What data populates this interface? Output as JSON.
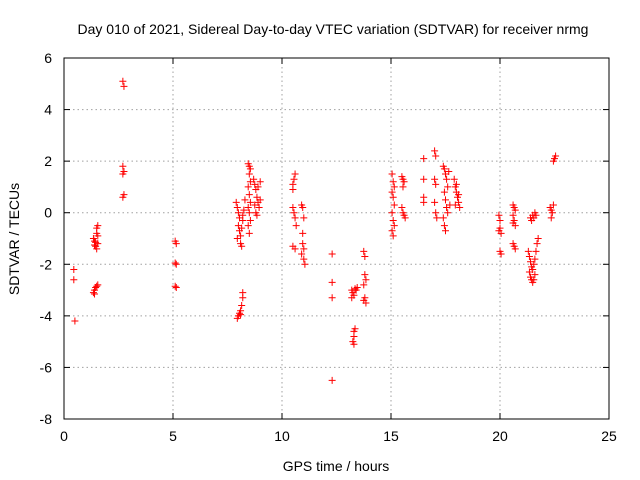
{
  "chart_data": {
    "type": "scatter",
    "title": "Day 010 of 2021, Sidereal Day-to-day VTEC variation (SDTVAR) for receiver nrmg",
    "xlabel": "GPS time / hours",
    "ylabel": "SDTVAR / TECUs",
    "xlim": [
      0,
      25
    ],
    "ylim": [
      -8,
      6
    ],
    "xticks": [
      0,
      5,
      10,
      15,
      20,
      25
    ],
    "yticks": [
      -8,
      -6,
      -4,
      -2,
      0,
      2,
      4,
      6
    ],
    "grid": true,
    "marker": "+",
    "color": "#ff0000",
    "points": [
      [
        0.45,
        -2.2
      ],
      [
        0.45,
        -2.6
      ],
      [
        0.5,
        -4.2
      ],
      [
        1.35,
        -1.0
      ],
      [
        1.4,
        -1.1
      ],
      [
        1.4,
        -1.25
      ],
      [
        1.45,
        -1.15
      ],
      [
        1.45,
        -1.3
      ],
      [
        1.5,
        -0.8
      ],
      [
        1.5,
        -1.4
      ],
      [
        1.5,
        -0.6
      ],
      [
        1.55,
        -0.9
      ],
      [
        1.55,
        -1.2
      ],
      [
        1.55,
        -0.5
      ],
      [
        1.35,
        -3.1
      ],
      [
        1.4,
        -3.0
      ],
      [
        1.45,
        -2.9
      ],
      [
        1.5,
        -2.85
      ],
      [
        1.55,
        -2.8
      ],
      [
        1.4,
        -3.15
      ],
      [
        2.7,
        5.1
      ],
      [
        2.75,
        4.9
      ],
      [
        2.7,
        1.8
      ],
      [
        2.75,
        1.6
      ],
      [
        2.7,
        1.5
      ],
      [
        2.75,
        0.7
      ],
      [
        2.7,
        0.6
      ],
      [
        5.1,
        -1.1
      ],
      [
        5.15,
        -1.2
      ],
      [
        5.1,
        -1.95
      ],
      [
        5.15,
        -2.0
      ],
      [
        5.1,
        -2.85
      ],
      [
        5.15,
        -2.9
      ],
      [
        7.9,
        0.4
      ],
      [
        7.95,
        0.2
      ],
      [
        8.0,
        0.0
      ],
      [
        8.05,
        -0.2
      ],
      [
        8.0,
        -0.5
      ],
      [
        8.05,
        -0.7
      ],
      [
        8.1,
        -0.9
      ],
      [
        7.95,
        -1.0
      ],
      [
        8.1,
        -1.2
      ],
      [
        8.15,
        -1.3
      ],
      [
        8.2,
        -0.1
      ],
      [
        8.25,
        0.1
      ],
      [
        8.3,
        0.5
      ],
      [
        8.15,
        -0.6
      ],
      [
        8.2,
        -0.3
      ],
      [
        7.95,
        -4.1
      ],
      [
        8.0,
        -4.0
      ],
      [
        8.05,
        -3.9
      ],
      [
        8.1,
        -3.8
      ],
      [
        8.15,
        -3.6
      ],
      [
        8.2,
        -3.3
      ],
      [
        8.2,
        -3.1
      ],
      [
        8.1,
        -3.95
      ],
      [
        8.45,
        1.9
      ],
      [
        8.5,
        1.8
      ],
      [
        8.55,
        1.7
      ],
      [
        8.5,
        1.5
      ],
      [
        8.55,
        1.2
      ],
      [
        8.45,
        1.0
      ],
      [
        8.5,
        0.7
      ],
      [
        8.55,
        0.4
      ],
      [
        8.45,
        0.2
      ],
      [
        8.5,
        0.0
      ],
      [
        8.55,
        -0.3
      ],
      [
        8.45,
        -0.5
      ],
      [
        8.5,
        -0.8
      ],
      [
        8.7,
        1.3
      ],
      [
        8.75,
        1.1
      ],
      [
        8.8,
        0.9
      ],
      [
        8.85,
        0.6
      ],
      [
        8.9,
        0.4
      ],
      [
        8.95,
        0.2
      ],
      [
        9.0,
        1.2
      ],
      [
        9.0,
        0.5
      ],
      [
        8.75,
        0.3
      ],
      [
        8.8,
        0.0
      ],
      [
        8.9,
        1.0
      ],
      [
        8.85,
        -0.1
      ],
      [
        10.5,
        1.1
      ],
      [
        10.55,
        1.3
      ],
      [
        10.6,
        1.5
      ],
      [
        10.5,
        0.9
      ],
      [
        10.5,
        0.2
      ],
      [
        10.55,
        0.0
      ],
      [
        10.6,
        -0.2
      ],
      [
        10.5,
        -1.3
      ],
      [
        10.6,
        -1.4
      ],
      [
        10.65,
        -0.5
      ],
      [
        10.9,
        0.3
      ],
      [
        10.95,
        0.2
      ],
      [
        11.0,
        -0.2
      ],
      [
        10.95,
        -1.2
      ],
      [
        11.0,
        -1.4
      ],
      [
        10.9,
        -1.6
      ],
      [
        11.0,
        -1.8
      ],
      [
        11.05,
        -2.0
      ],
      [
        10.95,
        -0.8
      ],
      [
        12.3,
        -1.6
      ],
      [
        12.3,
        -2.7
      ],
      [
        12.3,
        -3.3
      ],
      [
        12.3,
        -6.5
      ],
      [
        13.2,
        -3.0
      ],
      [
        13.25,
        -3.1
      ],
      [
        13.3,
        -3.2
      ],
      [
        13.35,
        -2.95
      ],
      [
        13.4,
        -3.0
      ],
      [
        13.45,
        -2.9
      ],
      [
        13.2,
        -3.3
      ],
      [
        13.3,
        -4.6
      ],
      [
        13.3,
        -4.8
      ],
      [
        13.25,
        -5.0
      ],
      [
        13.3,
        -5.1
      ],
      [
        13.35,
        -4.5
      ],
      [
        13.75,
        -1.5
      ],
      [
        13.8,
        -1.7
      ],
      [
        13.8,
        -2.4
      ],
      [
        13.85,
        -2.6
      ],
      [
        13.75,
        -2.8
      ],
      [
        13.8,
        -3.3
      ],
      [
        13.85,
        -3.5
      ],
      [
        13.75,
        -3.4
      ],
      [
        15.05,
        1.5
      ],
      [
        15.1,
        1.2
      ],
      [
        15.15,
        1.0
      ],
      [
        15.05,
        0.8
      ],
      [
        15.1,
        0.6
      ],
      [
        15.15,
        0.3
      ],
      [
        15.05,
        0.0
      ],
      [
        15.1,
        -0.3
      ],
      [
        15.15,
        -0.5
      ],
      [
        15.05,
        -0.7
      ],
      [
        15.1,
        -0.9
      ],
      [
        15.5,
        1.4
      ],
      [
        15.55,
        1.3
      ],
      [
        15.6,
        1.2
      ],
      [
        15.55,
        1.0
      ],
      [
        15.5,
        0.2
      ],
      [
        15.55,
        0.0
      ],
      [
        15.6,
        -0.1
      ],
      [
        15.65,
        -0.2
      ],
      [
        16.5,
        2.1
      ],
      [
        16.5,
        1.3
      ],
      [
        16.5,
        0.6
      ],
      [
        16.5,
        0.4
      ],
      [
        17.0,
        2.4
      ],
      [
        17.05,
        2.2
      ],
      [
        17.0,
        1.3
      ],
      [
        17.05,
        1.1
      ],
      [
        17.0,
        0.4
      ],
      [
        17.05,
        0.0
      ],
      [
        17.1,
        -0.2
      ],
      [
        17.4,
        1.8
      ],
      [
        17.45,
        1.7
      ],
      [
        17.5,
        1.5
      ],
      [
        17.55,
        1.3
      ],
      [
        17.6,
        1.0
      ],
      [
        17.45,
        0.8
      ],
      [
        17.5,
        0.5
      ],
      [
        17.55,
        0.2
      ],
      [
        17.6,
        0.0
      ],
      [
        17.4,
        -0.2
      ],
      [
        17.45,
        -0.5
      ],
      [
        17.5,
        -0.7
      ],
      [
        17.65,
        1.6
      ],
      [
        17.7,
        0.3
      ],
      [
        17.9,
        1.3
      ],
      [
        17.95,
        1.0
      ],
      [
        18.0,
        0.8
      ],
      [
        18.05,
        0.6
      ],
      [
        18.1,
        0.4
      ],
      [
        18.15,
        0.2
      ],
      [
        18.0,
        1.1
      ],
      [
        18.1,
        0.7
      ],
      [
        17.95,
        0.3
      ],
      [
        19.95,
        -0.1
      ],
      [
        20.0,
        -0.3
      ],
      [
        20.0,
        -0.6
      ],
      [
        20.05,
        -0.8
      ],
      [
        19.95,
        -0.7
      ],
      [
        20.0,
        -1.5
      ],
      [
        20.05,
        -1.6
      ],
      [
        20.6,
        0.3
      ],
      [
        20.65,
        0.2
      ],
      [
        20.7,
        0.1
      ],
      [
        20.6,
        -0.1
      ],
      [
        20.65,
        -0.3
      ],
      [
        20.7,
        -0.5
      ],
      [
        20.6,
        -0.4
      ],
      [
        20.65,
        -1.3
      ],
      [
        20.7,
        -1.4
      ],
      [
        20.6,
        -1.2
      ],
      [
        21.4,
        -0.2
      ],
      [
        21.45,
        -0.3
      ],
      [
        21.5,
        -0.1
      ],
      [
        21.55,
        -0.2
      ],
      [
        21.6,
        0.0
      ],
      [
        21.65,
        -0.1
      ],
      [
        21.3,
        -1.5
      ],
      [
        21.35,
        -1.7
      ],
      [
        21.4,
        -1.9
      ],
      [
        21.45,
        -2.1
      ],
      [
        21.5,
        -2.2
      ],
      [
        21.55,
        -2.0
      ],
      [
        21.6,
        -1.8
      ],
      [
        21.65,
        -1.5
      ],
      [
        21.7,
        -1.2
      ],
      [
        21.75,
        -1.0
      ],
      [
        21.4,
        -2.5
      ],
      [
        21.45,
        -2.6
      ],
      [
        21.5,
        -2.7
      ],
      [
        21.55,
        -2.6
      ],
      [
        21.6,
        -2.4
      ],
      [
        21.35,
        -2.3
      ],
      [
        22.3,
        0.2
      ],
      [
        22.35,
        0.1
      ],
      [
        22.4,
        0.0
      ],
      [
        22.35,
        -0.2
      ],
      [
        22.45,
        0.3
      ],
      [
        22.5,
        2.1
      ],
      [
        22.55,
        2.2
      ],
      [
        22.45,
        2.0
      ]
    ]
  }
}
